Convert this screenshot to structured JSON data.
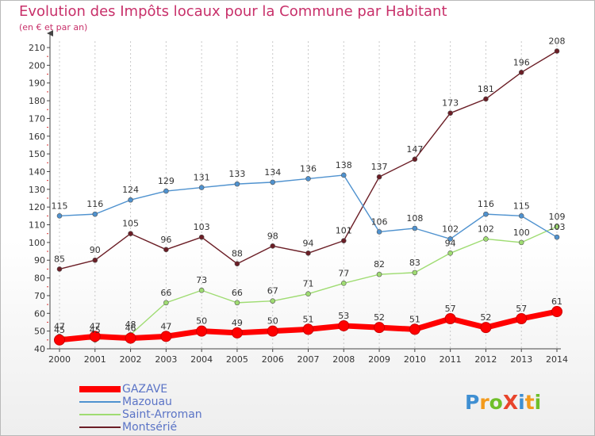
{
  "title": "Evolution des Impôts locaux pour la Commune par Habitant",
  "subtitle": "(en € et par an)",
  "logo": "ProXiti",
  "chart_data": {
    "type": "line",
    "x": [
      "2000",
      "2001",
      "2002",
      "2003",
      "2004",
      "2005",
      "2006",
      "2007",
      "2008",
      "2009",
      "2010",
      "2011",
      "2012",
      "2013",
      "2014"
    ],
    "ylim": [
      40,
      210
    ],
    "ytick_step": 10,
    "grid": "vertical dashed",
    "legend_position": "bottom-left",
    "series": [
      {
        "name": "GAZAVE",
        "color": "#ff0000",
        "values": [
          45,
          47,
          46,
          47,
          50,
          49,
          50,
          51,
          53,
          52,
          51,
          57,
          52,
          57,
          61
        ],
        "labels": [
          "45",
          "47",
          "46",
          "47",
          "50",
          "49",
          "50",
          "51",
          "53",
          "52",
          "51",
          "57",
          "52",
          "57",
          "61"
        ]
      },
      {
        "name": "Mazouau",
        "color": "#4f92cf",
        "values": [
          115,
          116,
          124,
          129,
          131,
          133,
          134,
          136,
          138,
          106,
          108,
          102,
          116,
          115,
          103
        ],
        "labels": [
          "115",
          "116",
          "124",
          "129",
          "131",
          "133",
          "134",
          "136",
          "138",
          "106",
          "108",
          "102",
          "116",
          "115",
          "103"
        ]
      },
      {
        "name": "Saint-Arroman",
        "color": "#9fdc72",
        "values": [
          47,
          45,
          48,
          66,
          73,
          66,
          67,
          71,
          77,
          82,
          83,
          94,
          102,
          100,
          109
        ],
        "labels": [
          "47",
          "45",
          "48",
          "66",
          "73",
          "66",
          "67",
          "71",
          "77",
          "82",
          "83",
          "94",
          "102",
          "100",
          "109"
        ]
      },
      {
        "name": "Montsérié",
        "color": "#6b1e26",
        "values": [
          85,
          90,
          105,
          96,
          103,
          88,
          98,
          94,
          101,
          137,
          147,
          173,
          181,
          196,
          208
        ],
        "labels": [
          "85",
          "90",
          "105",
          "96",
          "103",
          "88",
          "98",
          "94",
          "101",
          "137",
          "147",
          "173",
          "181",
          "196",
          "208"
        ]
      }
    ]
  }
}
